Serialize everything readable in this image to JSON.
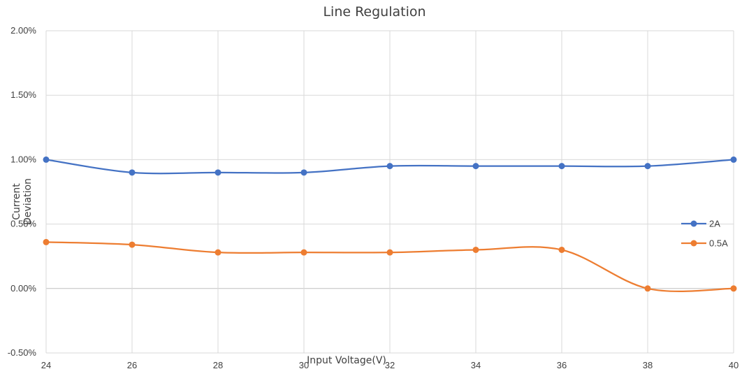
{
  "chart_data": {
    "type": "line",
    "title": "Line Regulation",
    "xlabel": "Input Voltage(V)",
    "ylabel": "Current Deviation",
    "x": [
      24,
      26,
      28,
      30,
      32,
      34,
      36,
      38,
      40
    ],
    "x_ticks": [
      "24",
      "26",
      "28",
      "30",
      "32",
      "34",
      "36",
      "38",
      "40"
    ],
    "xlim": [
      24,
      40
    ],
    "ylim": [
      -0.5,
      2.0
    ],
    "y_ticks": [
      -0.5,
      0.0,
      0.5,
      1.0,
      1.5,
      2.0
    ],
    "y_tick_labels": [
      "-0.50%",
      "0.00%",
      "0.50%",
      "1.00%",
      "1.50%",
      "2.00%"
    ],
    "grid": true,
    "legend_position": "right",
    "smooth": true,
    "series": [
      {
        "name": "2A",
        "color": "#4472c4",
        "values": [
          1.0,
          0.9,
          0.9,
          0.9,
          0.95,
          0.95,
          0.95,
          0.95,
          1.0
        ]
      },
      {
        "name": "0.5A",
        "color": "#ed7d31",
        "values": [
          0.36,
          0.34,
          0.28,
          0.28,
          0.28,
          0.3,
          0.3,
          0.0,
          0.0
        ]
      }
    ]
  }
}
